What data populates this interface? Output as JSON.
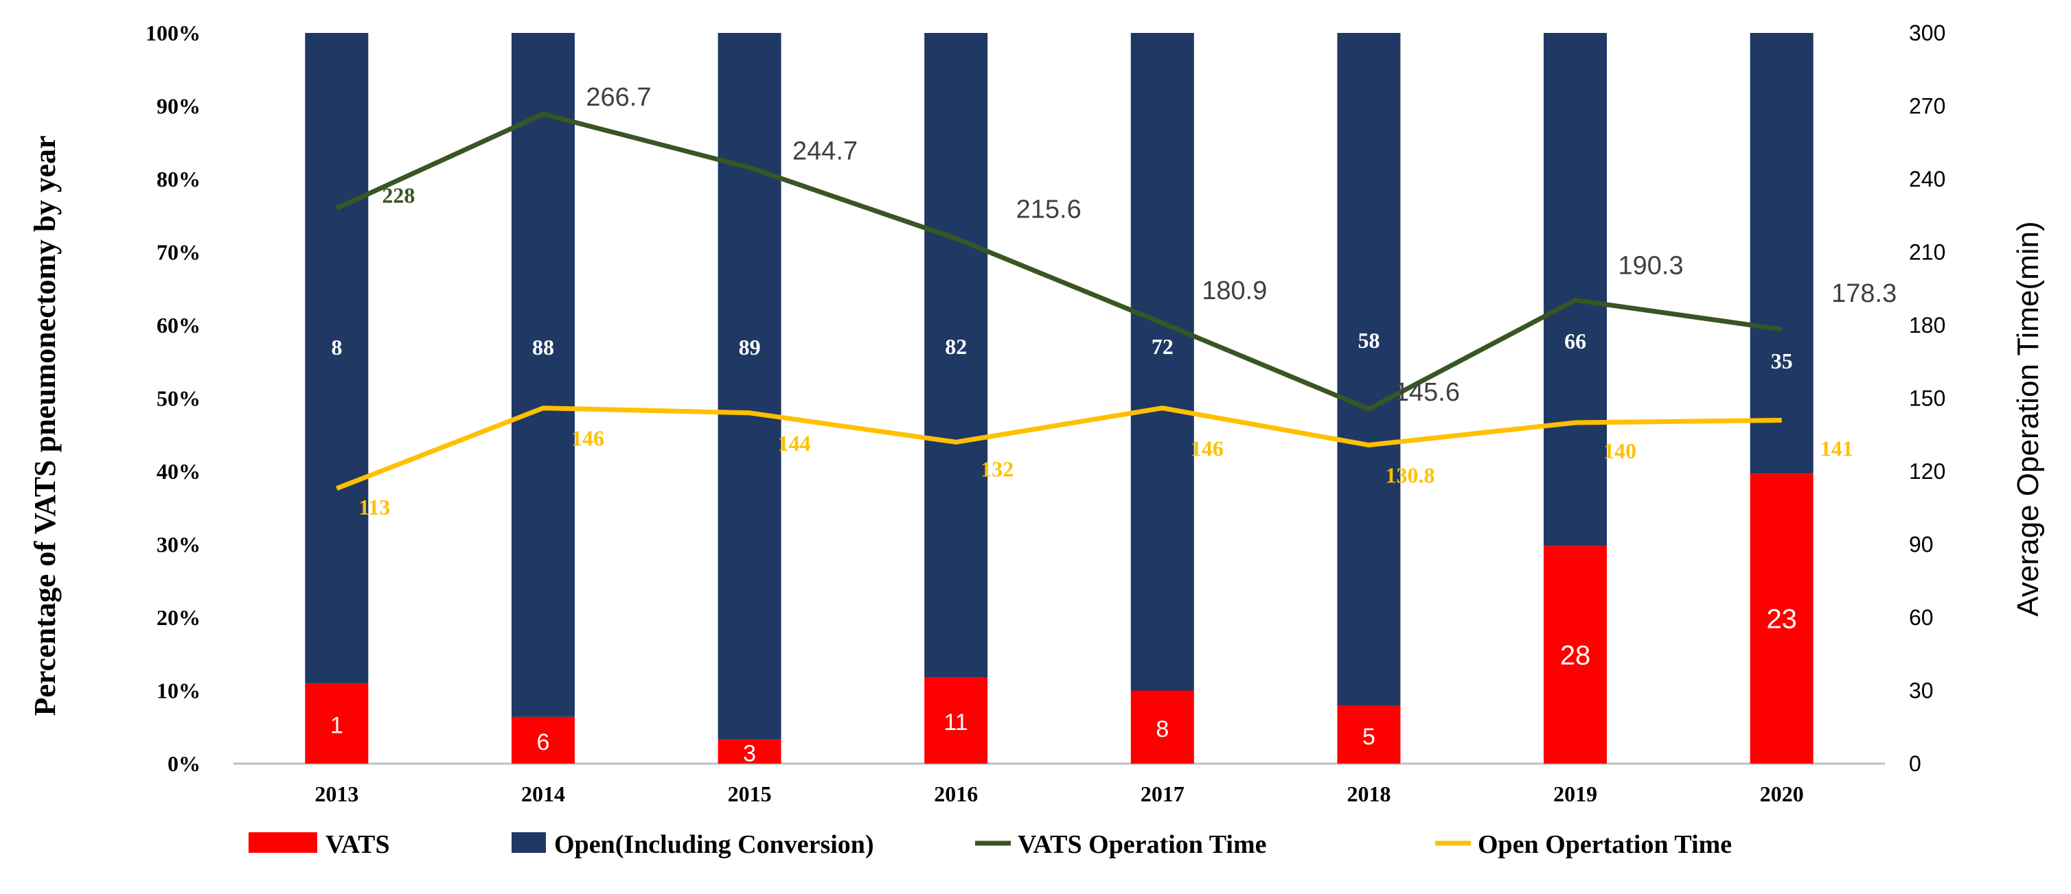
{
  "chart_data": {
    "type": "bar",
    "stacked": true,
    "categories": [
      "2013",
      "2014",
      "2015",
      "2016",
      "2017",
      "2018",
      "2019",
      "2020"
    ],
    "series": [
      {
        "name": "VATS",
        "axis": "left",
        "color": "#ff0000",
        "percent": [
          11,
          6.4,
          3.3,
          11.8,
          10,
          7.9,
          29.8,
          39.7
        ],
        "labels": [
          "1",
          "6",
          "3",
          "11",
          "8",
          "5",
          "28",
          "23"
        ]
      },
      {
        "name": "Open(Including Conversion)",
        "axis": "left",
        "color": "#1f3864",
        "percent": [
          89,
          93.6,
          96.7,
          88.2,
          90,
          92.1,
          70.2,
          60.3
        ],
        "labels": [
          "8",
          "88",
          "89",
          "82",
          "72",
          "58",
          "66",
          "35"
        ]
      },
      {
        "name": "VATS Operation Time",
        "type": "line",
        "axis": "right",
        "color": "#375623",
        "values": [
          228,
          266.7,
          244.7,
          215.6,
          180.9,
          145.6,
          190.3,
          178.3
        ],
        "labels": [
          "228",
          "266.7",
          "244.7",
          "215.6",
          "180.9",
          "145.6",
          "190.3",
          "178.3"
        ]
      },
      {
        "name": "Open Opertation Time",
        "type": "line",
        "axis": "right",
        "color": "#ffc000",
        "values": [
          113,
          146,
          144,
          132,
          146,
          130.8,
          140,
          141
        ],
        "labels": [
          "113",
          "146",
          "144",
          "132",
          "146",
          "130.8",
          "140",
          "141"
        ]
      }
    ],
    "ylabel": "Percentage of VATS pneumonectomy by year",
    "y2label": "Average Operation Time(min)",
    "ylim": [
      0,
      100
    ],
    "y2lim": [
      0,
      300
    ],
    "yticks": [
      "0%",
      "10%",
      "20%",
      "30%",
      "40%",
      "50%",
      "60%",
      "70%",
      "80%",
      "90%",
      "100%"
    ],
    "y2ticks": [
      "0",
      "30",
      "60",
      "90",
      "120",
      "150",
      "180",
      "210",
      "240",
      "270",
      "300"
    ],
    "legend_position": "bottom"
  }
}
